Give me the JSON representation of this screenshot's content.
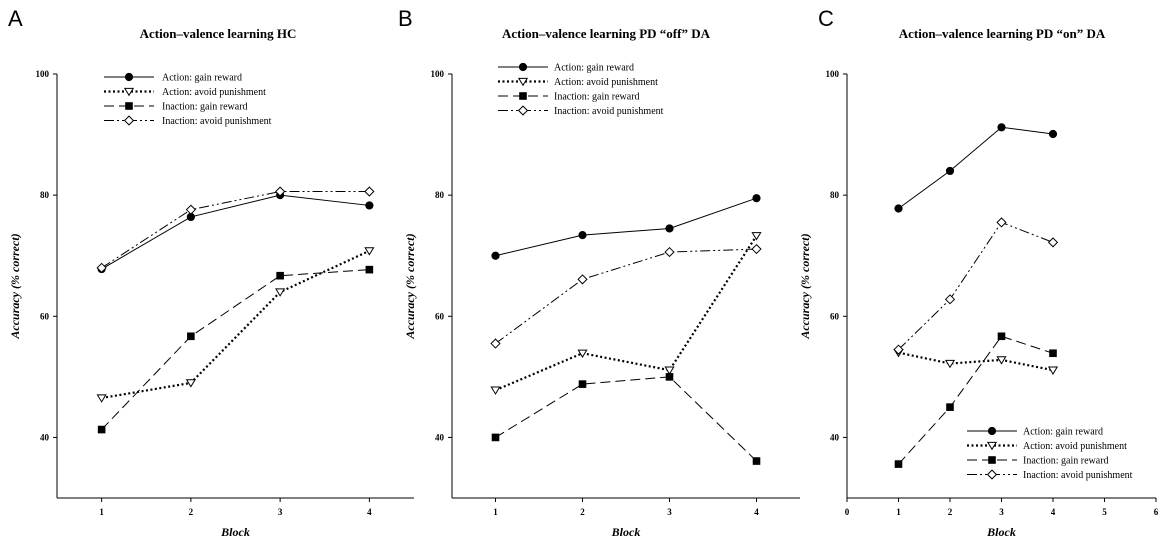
{
  "chart_data": [
    {
      "type": "line",
      "panel_letter": "A",
      "title": "Action–valence learning HC",
      "xlabel": "Block",
      "ylabel": "Accuracy (% correct)",
      "xlim": [
        0.5,
        4.5
      ],
      "ylim": [
        30,
        100
      ],
      "x_ticks": [
        1,
        2,
        3,
        4
      ],
      "y_ticks": [
        40,
        60,
        80,
        100
      ],
      "legend_position": "top-left",
      "series": [
        {
          "name": "Action: gain reward",
          "style": "solid",
          "marker": "filled-circle",
          "x": [
            1,
            2,
            3,
            4
          ],
          "y": [
            67.8,
            76.4,
            80.0,
            78.3
          ]
        },
        {
          "name": "Action: avoid punishment",
          "style": "dotted",
          "marker": "open-triangle-down",
          "x": [
            1,
            2,
            3,
            4
          ],
          "y": [
            46.5,
            49.0,
            64.0,
            70.8
          ]
        },
        {
          "name": "Inaction: gain reward",
          "style": "dashed",
          "marker": "filled-square",
          "x": [
            1,
            2,
            3,
            4
          ],
          "y": [
            41.3,
            56.7,
            66.7,
            67.7
          ]
        },
        {
          "name": "Inaction: avoid punishment",
          "style": "dash-dot-dot",
          "marker": "open-diamond",
          "x": [
            1,
            2,
            3,
            4
          ],
          "y": [
            68.0,
            77.6,
            80.6,
            80.6
          ]
        }
      ]
    },
    {
      "type": "line",
      "panel_letter": "B",
      "title": "Action–valence learning PD “off” DA",
      "xlabel": "Block",
      "ylabel": "Accuracy (% correct)",
      "xlim": [
        0.5,
        4.5
      ],
      "ylim": [
        30,
        100
      ],
      "x_ticks": [
        1,
        2,
        3,
        4
      ],
      "y_ticks": [
        40,
        60,
        80,
        100
      ],
      "legend_position": "top-left",
      "series": [
        {
          "name": "Action: gain reward",
          "style": "solid",
          "marker": "filled-circle",
          "x": [
            1,
            2,
            3,
            4
          ],
          "y": [
            70.0,
            73.4,
            74.5,
            79.5
          ]
        },
        {
          "name": "Action: avoid punishment",
          "style": "dotted",
          "marker": "open-triangle-down",
          "x": [
            1,
            2,
            3,
            4
          ],
          "y": [
            47.8,
            53.9,
            51.1,
            73.3
          ]
        },
        {
          "name": "Inaction: gain reward",
          "style": "dashed",
          "marker": "filled-square",
          "x": [
            1,
            2,
            3,
            4
          ],
          "y": [
            40.0,
            48.8,
            50.0,
            36.1
          ]
        },
        {
          "name": "Inaction: avoid punishment",
          "style": "dash-dot-dot",
          "marker": "open-diamond",
          "x": [
            1,
            2,
            3,
            4
          ],
          "y": [
            55.5,
            66.1,
            70.6,
            71.1
          ]
        }
      ]
    },
    {
      "type": "line",
      "panel_letter": "C",
      "title": "Action–valence learning PD “on” DA",
      "xlabel": "Block",
      "ylabel": "Accuracy (% correct)",
      "xlim": [
        0,
        6
      ],
      "ylim": [
        30,
        100
      ],
      "x_ticks": [
        0,
        1,
        2,
        3,
        4,
        5,
        6
      ],
      "y_ticks": [
        40,
        60,
        80,
        100
      ],
      "legend_position": "bottom-right",
      "series": [
        {
          "name": "Action: gain reward",
          "style": "solid",
          "marker": "filled-circle",
          "x": [
            1,
            2,
            3,
            4
          ],
          "y": [
            77.8,
            84.0,
            91.2,
            90.1
          ]
        },
        {
          "name": "Action: avoid punishment",
          "style": "dotted",
          "marker": "open-triangle-down",
          "x": [
            1,
            2,
            3,
            4
          ],
          "y": [
            54.0,
            52.2,
            52.8,
            51.1
          ]
        },
        {
          "name": "Inaction: gain reward",
          "style": "dashed",
          "marker": "filled-square",
          "x": [
            1,
            2,
            3,
            4
          ],
          "y": [
            35.6,
            45.0,
            56.7,
            53.9
          ]
        },
        {
          "name": "Inaction: avoid punishment",
          "style": "dash-dot-dot",
          "marker": "open-diamond",
          "x": [
            1,
            2,
            3,
            4
          ],
          "y": [
            54.5,
            62.8,
            75.5,
            72.2
          ]
        }
      ]
    }
  ]
}
